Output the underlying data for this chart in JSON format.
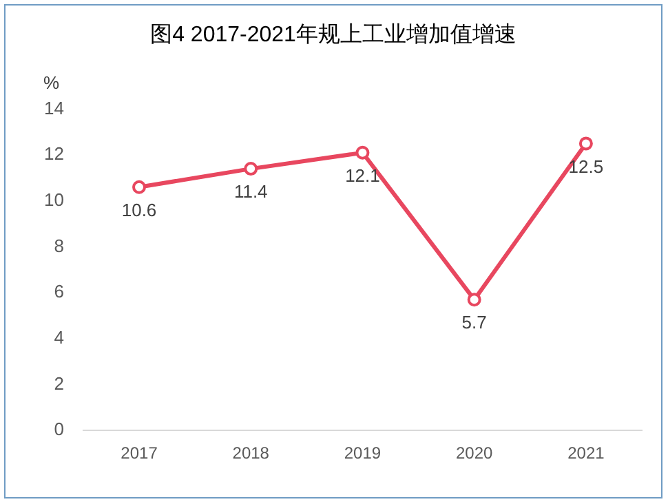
{
  "chart_data": {
    "type": "line",
    "title": "图4 2017-2021年规上工业增加值增速",
    "ylabel": "%",
    "categories": [
      "2017",
      "2018",
      "2019",
      "2020",
      "2021"
    ],
    "series": [
      {
        "color": "#e8475f",
        "values": [
          10.6,
          11.4,
          12.1,
          5.7,
          12.5
        ]
      }
    ],
    "ylim": [
      0,
      14
    ],
    "yticks": [
      0,
      2,
      4,
      6,
      8,
      10,
      12,
      14
    ],
    "grid": false,
    "legend": false,
    "marker": "circle",
    "line_style": "solid",
    "data_labels": true
  }
}
